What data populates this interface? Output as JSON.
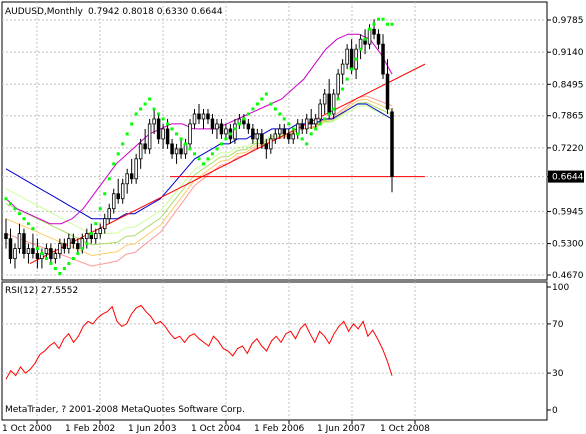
{
  "header": {
    "symbol": "AUDUSD,Monthly",
    "ohlc": "0.7942 0.8018 0.6330 0.6644"
  },
  "rsi": {
    "label": "RSI(12) 27.5552"
  },
  "footer": {
    "copyright": "MetaTrader, ? 2001-2008 MetaQuotes Software Corp."
  },
  "price_axis": {
    "ticks": [
      "0.9785",
      "0.9140",
      "0.8495",
      "0.7865",
      "0.7220",
      "0.6644",
      "0.5945",
      "0.5300",
      "0.4670"
    ],
    "current": "0.6644"
  },
  "rsi_axis": {
    "ticks": [
      "100",
      "70",
      "30",
      "0"
    ]
  },
  "time_axis": {
    "ticks": [
      "1 Oct 2000",
      "1 Feb 2002",
      "1 Jun 2003",
      "1 Oct 2004",
      "1 Feb 2006",
      "1 Jun 2007",
      "1 Oct 2008"
    ]
  },
  "colors": {
    "bull": "#ffffff",
    "bear": "#000000",
    "candle_outline": "#000000",
    "sar": "#00ff00",
    "rsi": "#ff0000",
    "level_line": "#ff0000",
    "trend_line": "#ff0000",
    "ma_slow": "#0000cc",
    "ma_mid": "#cc00cc",
    "ma_fan": [
      "#ccff99",
      "#aadd66",
      "#ffcc66",
      "#ff9999"
    ],
    "grid": "#c0c0c0",
    "current_price_bg": "#000000",
    "current_price_text": "#ffffff"
  },
  "chart_data": {
    "type": "candlestick",
    "symbol": "AUDUSD",
    "timeframe": "Monthly",
    "ylim": [
      0.467,
      0.9785
    ],
    "rsi_ylim": [
      0,
      100
    ],
    "rsi_levels": [
      30,
      70
    ],
    "support_level": 0.6644,
    "candles": [
      [
        0.55,
        0.58,
        0.52,
        0.54
      ],
      [
        0.54,
        0.56,
        0.49,
        0.5
      ],
      [
        0.5,
        0.53,
        0.48,
        0.52
      ],
      [
        0.52,
        0.57,
        0.51,
        0.55
      ],
      [
        0.55,
        0.56,
        0.5,
        0.51
      ],
      [
        0.51,
        0.53,
        0.49,
        0.52
      ],
      [
        0.52,
        0.55,
        0.5,
        0.51
      ],
      [
        0.51,
        0.54,
        0.48,
        0.5
      ],
      [
        0.5,
        0.52,
        0.48,
        0.51
      ],
      [
        0.51,
        0.53,
        0.5,
        0.52
      ],
      [
        0.52,
        0.53,
        0.49,
        0.5
      ],
      [
        0.5,
        0.52,
        0.49,
        0.51
      ],
      [
        0.51,
        0.54,
        0.5,
        0.53
      ],
      [
        0.53,
        0.54,
        0.51,
        0.52
      ],
      [
        0.52,
        0.55,
        0.51,
        0.54
      ],
      [
        0.54,
        0.55,
        0.52,
        0.53
      ],
      [
        0.53,
        0.54,
        0.51,
        0.52
      ],
      [
        0.52,
        0.55,
        0.51,
        0.54
      ],
      [
        0.54,
        0.56,
        0.52,
        0.55
      ],
      [
        0.55,
        0.57,
        0.53,
        0.54
      ],
      [
        0.54,
        0.56,
        0.53,
        0.55
      ],
      [
        0.55,
        0.57,
        0.54,
        0.56
      ],
      [
        0.56,
        0.59,
        0.55,
        0.58
      ],
      [
        0.58,
        0.61,
        0.57,
        0.6
      ],
      [
        0.6,
        0.64,
        0.59,
        0.63
      ],
      [
        0.63,
        0.66,
        0.61,
        0.62
      ],
      [
        0.62,
        0.66,
        0.61,
        0.65
      ],
      [
        0.65,
        0.68,
        0.63,
        0.67
      ],
      [
        0.67,
        0.7,
        0.65,
        0.66
      ],
      [
        0.66,
        0.71,
        0.65,
        0.7
      ],
      [
        0.7,
        0.74,
        0.68,
        0.73
      ],
      [
        0.73,
        0.76,
        0.71,
        0.72
      ],
      [
        0.72,
        0.78,
        0.71,
        0.77
      ],
      [
        0.77,
        0.8,
        0.75,
        0.78
      ],
      [
        0.78,
        0.79,
        0.73,
        0.74
      ],
      [
        0.74,
        0.77,
        0.72,
        0.76
      ],
      [
        0.76,
        0.78,
        0.72,
        0.73
      ],
      [
        0.73,
        0.74,
        0.7,
        0.71
      ],
      [
        0.71,
        0.73,
        0.69,
        0.72
      ],
      [
        0.72,
        0.74,
        0.7,
        0.71
      ],
      [
        0.71,
        0.74,
        0.7,
        0.73
      ],
      [
        0.73,
        0.78,
        0.72,
        0.77
      ],
      [
        0.77,
        0.8,
        0.76,
        0.79
      ],
      [
        0.79,
        0.81,
        0.77,
        0.78
      ],
      [
        0.78,
        0.8,
        0.76,
        0.79
      ],
      [
        0.79,
        0.8,
        0.77,
        0.78
      ],
      [
        0.78,
        0.79,
        0.75,
        0.76
      ],
      [
        0.76,
        0.78,
        0.74,
        0.77
      ],
      [
        0.77,
        0.78,
        0.74,
        0.75
      ],
      [
        0.75,
        0.77,
        0.74,
        0.76
      ],
      [
        0.76,
        0.77,
        0.73,
        0.74
      ],
      [
        0.74,
        0.78,
        0.73,
        0.77
      ],
      [
        0.77,
        0.79,
        0.76,
        0.78
      ],
      [
        0.78,
        0.79,
        0.76,
        0.77
      ],
      [
        0.77,
        0.78,
        0.75,
        0.76
      ],
      [
        0.76,
        0.77,
        0.73,
        0.74
      ],
      [
        0.74,
        0.76,
        0.72,
        0.75
      ],
      [
        0.75,
        0.76,
        0.72,
        0.73
      ],
      [
        0.73,
        0.74,
        0.7,
        0.72
      ],
      [
        0.72,
        0.75,
        0.71,
        0.74
      ],
      [
        0.74,
        0.76,
        0.73,
        0.75
      ],
      [
        0.75,
        0.77,
        0.74,
        0.76
      ],
      [
        0.76,
        0.77,
        0.74,
        0.75
      ],
      [
        0.75,
        0.76,
        0.73,
        0.74
      ],
      [
        0.74,
        0.76,
        0.73,
        0.75
      ],
      [
        0.75,
        0.78,
        0.74,
        0.77
      ],
      [
        0.77,
        0.78,
        0.75,
        0.76
      ],
      [
        0.76,
        0.79,
        0.75,
        0.78
      ],
      [
        0.78,
        0.8,
        0.76,
        0.77
      ],
      [
        0.77,
        0.79,
        0.76,
        0.78
      ],
      [
        0.78,
        0.82,
        0.77,
        0.81
      ],
      [
        0.81,
        0.84,
        0.79,
        0.83
      ],
      [
        0.83,
        0.86,
        0.78,
        0.79
      ],
      [
        0.79,
        0.84,
        0.78,
        0.83
      ],
      [
        0.83,
        0.88,
        0.82,
        0.87
      ],
      [
        0.87,
        0.9,
        0.85,
        0.89
      ],
      [
        0.89,
        0.93,
        0.88,
        0.92
      ],
      [
        0.92,
        0.94,
        0.87,
        0.88
      ],
      [
        0.88,
        0.93,
        0.86,
        0.92
      ],
      [
        0.92,
        0.95,
        0.9,
        0.94
      ],
      [
        0.94,
        0.96,
        0.91,
        0.93
      ],
      [
        0.93,
        0.97,
        0.92,
        0.96
      ],
      [
        0.96,
        0.98,
        0.94,
        0.95
      ],
      [
        0.95,
        0.96,
        0.92,
        0.93
      ],
      [
        0.93,
        0.95,
        0.86,
        0.87
      ],
      [
        0.87,
        0.9,
        0.79,
        0.8
      ],
      [
        0.7942,
        0.8018,
        0.633,
        0.6644
      ]
    ],
    "rsi_values": [
      25,
      32,
      28,
      35,
      30,
      33,
      38,
      45,
      48,
      52,
      55,
      50,
      58,
      62,
      55,
      60,
      68,
      72,
      70,
      75,
      78,
      80,
      84,
      72,
      68,
      70,
      78,
      83,
      85,
      80,
      76,
      70,
      72,
      68,
      62,
      58,
      60,
      55,
      60,
      62,
      58,
      55,
      52,
      60,
      56,
      50,
      48,
      44,
      50,
      52,
      46,
      54,
      58,
      52,
      48,
      56,
      60,
      55,
      62,
      64,
      58,
      66,
      70,
      62,
      55,
      64,
      60,
      54,
      62,
      68,
      72,
      64,
      70,
      66,
      72,
      60,
      65,
      58,
      50,
      40,
      28
    ],
    "sar_values": [
      0.62,
      0.61,
      0.6,
      0.59,
      0.58,
      0.57,
      0.56,
      0.52,
      0.51,
      0.5,
      0.49,
      0.48,
      0.47,
      0.48,
      0.49,
      0.5,
      0.51,
      0.52,
      0.53,
      0.55,
      0.57,
      0.6,
      0.63,
      0.66,
      0.69,
      0.71,
      0.73,
      0.75,
      0.77,
      0.79,
      0.8,
      0.81,
      0.82,
      0.8,
      0.79,
      0.78,
      0.77,
      0.76,
      0.75,
      0.74,
      0.73,
      0.72,
      0.71,
      0.7,
      0.69,
      0.7,
      0.71,
      0.72,
      0.73,
      0.74,
      0.75,
      0.76,
      0.77,
      0.78,
      0.79,
      0.8,
      0.81,
      0.82,
      0.83,
      0.81,
      0.8,
      0.79,
      0.78,
      0.77,
      0.76,
      0.75,
      0.74,
      0.73,
      0.75,
      0.76,
      0.77,
      0.78,
      0.79,
      0.8,
      0.82,
      0.84,
      0.86,
      0.88,
      0.9,
      0.92,
      0.94,
      0.96,
      0.97,
      0.98,
      0.98,
      0.97,
      0.97
    ],
    "ma_slow": [
      0.68,
      0.67,
      0.66,
      0.65,
      0.64,
      0.63,
      0.62,
      0.61,
      0.6,
      0.59,
      0.58,
      0.58,
      0.58,
      0.58,
      0.59,
      0.59,
      0.6,
      0.61,
      0.62,
      0.64,
      0.66,
      0.68,
      0.7,
      0.71,
      0.72,
      0.73,
      0.73,
      0.74,
      0.74,
      0.75,
      0.75,
      0.76,
      0.76,
      0.76,
      0.77,
      0.77,
      0.77,
      0.78,
      0.78,
      0.79,
      0.8,
      0.81,
      0.81,
      0.8,
      0.79,
      0.78
    ],
    "ma_mid": [
      0.62,
      0.6,
      0.59,
      0.58,
      0.57,
      0.57,
      0.58,
      0.6,
      0.63,
      0.66,
      0.69,
      0.71,
      0.73,
      0.75,
      0.76,
      0.77,
      0.77,
      0.76,
      0.76,
      0.76,
      0.77,
      0.78,
      0.79,
      0.8,
      0.81,
      0.82,
      0.84,
      0.86,
      0.89,
      0.92,
      0.94,
      0.95,
      0.95,
      0.94,
      0.91,
      0.87
    ],
    "trend_line": [
      [
        0.5,
        0.49
      ],
      [
        0.98,
        0.89
      ]
    ]
  }
}
